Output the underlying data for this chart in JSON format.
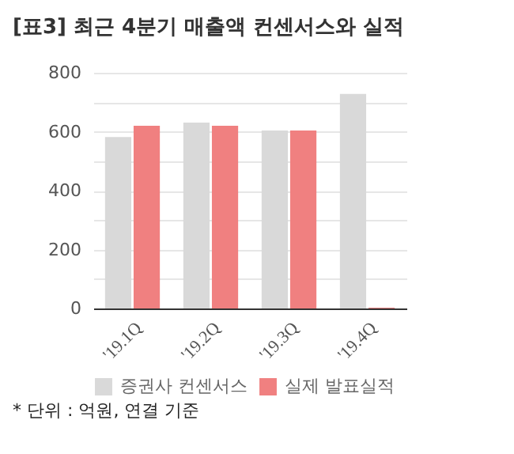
{
  "chart_data": {
    "type": "bar",
    "title": "[표3] 최근 4분기 매출액 컨센서스와 실적",
    "categories": [
      "'19.1Q",
      "'19.2Q",
      "'19.3Q",
      "'19.4Q"
    ],
    "series": [
      {
        "name": "증권사 컨센서스",
        "color": "#d9d9d9",
        "values": [
          582,
          631,
          604,
          728
        ]
      },
      {
        "name": "실제 발표실적",
        "color": "#f08080",
        "values": [
          620,
          620,
          604,
          3
        ]
      }
    ],
    "ylim": [
      0,
      800
    ],
    "yticks": [
      0,
      {
        "value": 100,
        "label": null
      },
      200,
      {
        "value": 300,
        "label": null
      },
      400,
      {
        "value": 500,
        "label": null
      },
      600,
      {
        "value": 700,
        "label": null
      },
      800
    ],
    "grid": "y",
    "legend": "bottom",
    "annotations": [
      "* 단위 : 억원, 연결 기준"
    ]
  }
}
